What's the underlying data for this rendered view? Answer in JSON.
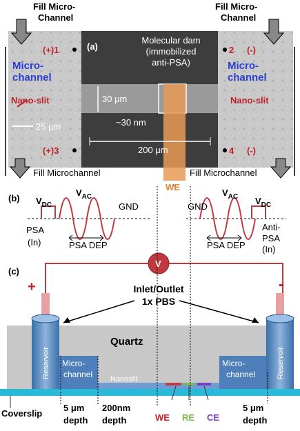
{
  "panel_a": {
    "label": "(a)",
    "fill_top_left": [
      "Fill Micro-",
      "Channel"
    ],
    "fill_top_right": [
      "Fill Micro-",
      "Channel"
    ],
    "port_1": "(+)1",
    "port_2": "2",
    "port_2_sign": "(-)",
    "port_3": "(+)3",
    "port_4": "4",
    "port_4_sign": "(-)",
    "microchannel_left": [
      "Micro-",
      "channel"
    ],
    "microchannel_right": [
      "Micro-",
      "channel"
    ],
    "nanoslit_left": "Nano-slit",
    "nanoslit_right": "Nano-slit",
    "scale_bar": "25 μm",
    "dam": [
      "Molecular dam",
      "(immobilized",
      "anti-PSA)"
    ],
    "width": "30 μm",
    "depth": "~30 nm",
    "length": "200 μm",
    "fill_bottom_left": "Fill Microchannel",
    "fill_bottom_right": "Fill Microchannel",
    "we": "WE"
  },
  "panel_b": {
    "label": "(b)",
    "left": {
      "vdc": {
        "main": "V",
        "sub": "DC"
      },
      "vac": {
        "main": "V",
        "sub": "AC"
      },
      "gnd": "GND",
      "analyte": [
        "PSA",
        "(In)"
      ],
      "dep": "PSA DEP"
    },
    "right": {
      "gnd": "GND",
      "vac": {
        "main": "V",
        "sub": "AC"
      },
      "vdc": {
        "main": "V",
        "sub": "DC"
      },
      "analyte": [
        "Anti-",
        "PSA",
        "(In)"
      ],
      "dep": "PSA DEP"
    }
  },
  "panel_c": {
    "label": "(c)",
    "meter": "V",
    "plus": "+",
    "minus": "-",
    "inlet": [
      "Inlet/Outlet",
      "1x PBS"
    ],
    "quartz": "Quartz",
    "reservoir_left": "Reservoir",
    "reservoir_right": "Reservoir",
    "microchannel_left": [
      "Micro-",
      "channel"
    ],
    "microchannel_right": [
      "Micro-",
      "channel"
    ],
    "nanoslit": "Nanoslit",
    "coverslip": "Coverslip",
    "depth_left": [
      "5 μm",
      "depth"
    ],
    "depth_mid": [
      "200nm",
      "depth"
    ],
    "we": "WE",
    "re": "RE",
    "ce": "CE",
    "depth_right": [
      "5 μm",
      "depth"
    ]
  }
}
